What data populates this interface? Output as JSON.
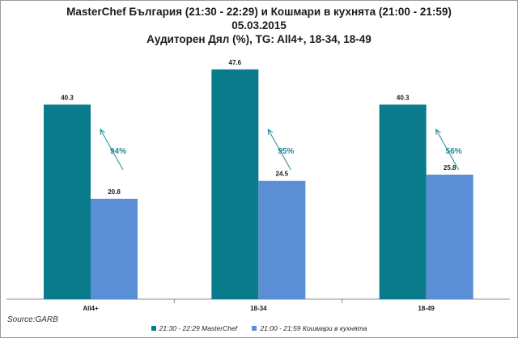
{
  "chart_data": {
    "type": "bar",
    "title": "MasterChef България (21:30 - 22:29) и Кошмари в кухнята (21:00 - 21:59)",
    "subtitle": "05.03.2015",
    "subtitle2": "Аудиторен Дял (%), TG: All4+, 18-34, 18-49",
    "categories": [
      "All4+",
      "18-34",
      "18-49"
    ],
    "series": [
      {
        "name": "21:30 - 22:29 MasterChef",
        "color": "#0a7b8a",
        "values": [
          40.3,
          47.6,
          40.3
        ]
      },
      {
        "name": "21:00 - 21:59 Кошмари в кухнята",
        "color": "#5a8fd6",
        "values": [
          20.8,
          24.5,
          25.8
        ]
      }
    ],
    "annotations": [
      "94%",
      "95%",
      "56%"
    ],
    "ylim": [
      0,
      50
    ],
    "legend": "bottom",
    "grid": false
  },
  "source": "Source:GARB"
}
